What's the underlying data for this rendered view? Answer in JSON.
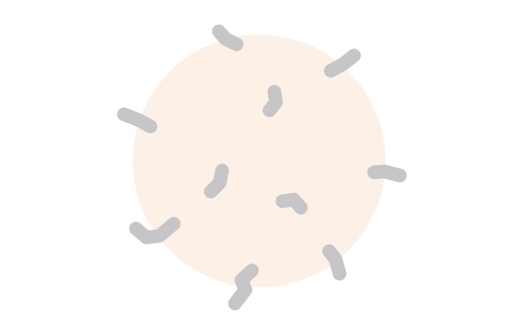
{
  "colors": {
    "background": "#ffffff",
    "disc": "#fdf0e7",
    "worm": "#c6c6c8"
  },
  "figure": {
    "worm_count": 10
  }
}
